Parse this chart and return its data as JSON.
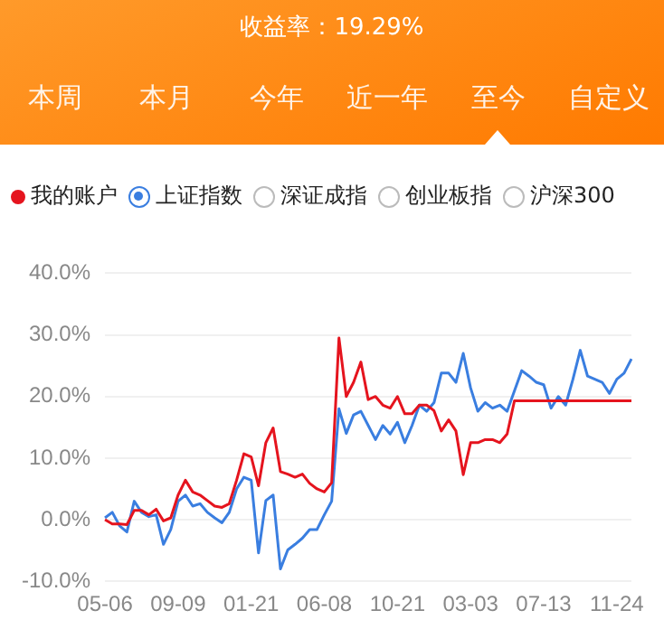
{
  "chart_data": {
    "type": "line",
    "title": "收益率：19.29%",
    "annotations": [
      "本周",
      "本月",
      "今年",
      "近一年",
      "至今",
      "自定义",
      "深证成指",
      "创业板指",
      "沪深300"
    ],
    "categories": [
      "05-06",
      null,
      null,
      null,
      null,
      null,
      null,
      null,
      null,
      null,
      "09-09",
      null,
      null,
      null,
      null,
      null,
      null,
      null,
      null,
      null,
      "01-21",
      null,
      null,
      null,
      null,
      null,
      null,
      null,
      null,
      null,
      "06-08",
      null,
      null,
      null,
      null,
      null,
      null,
      null,
      null,
      null,
      "10-21",
      null,
      null,
      null,
      null,
      null,
      null,
      null,
      null,
      null,
      "03-03",
      null,
      null,
      null,
      null,
      null,
      null,
      null,
      null,
      null,
      "07-13",
      null,
      null,
      null,
      null,
      null,
      null,
      null,
      null,
      null,
      "11-24",
      null,
      null
    ],
    "series": [
      {
        "name": "我的账户",
        "color": "#e5141e",
        "values": [
          0,
          -0.7,
          -0.7,
          -0.8,
          1.5,
          1.5,
          0.8,
          1.7,
          -0.2,
          0.3,
          4,
          6.4,
          4.5,
          4,
          3.1,
          2.2,
          2,
          2.6,
          6.4,
          10.7,
          10.2,
          5.5,
          12.5,
          14.9,
          7.8,
          7.4,
          6.9,
          7.4,
          5.9,
          5,
          4.5,
          6,
          29.5,
          20,
          22.3,
          25.6,
          19.5,
          20,
          18.6,
          18.1,
          20,
          17.2,
          17.2,
          18.6,
          18.6,
          17.7,
          14.4,
          16.2,
          14.4,
          7.3,
          12.5,
          12.5,
          13,
          13,
          12.5,
          13.9,
          19.3,
          19.3,
          19.3,
          19.3,
          19.3,
          19.3,
          19.3,
          19.3,
          19.3,
          19.3,
          19.3,
          19.3,
          19.3,
          19.3,
          19.3,
          19.3,
          19.3
        ]
      },
      {
        "name": "上证指数",
        "color": "#3a7ee0",
        "values": [
          0.3,
          1.2,
          -1,
          -2,
          3,
          1.2,
          0.5,
          0.8,
          -4,
          -1.6,
          3,
          4,
          2.2,
          2.6,
          1.2,
          0.3,
          -0.5,
          1.2,
          5,
          6.9,
          6.4,
          -5.4,
          3.1,
          4,
          -8,
          -4.9,
          -4,
          -3,
          -1.6,
          -1.6,
          0.8,
          3,
          18,
          14,
          17,
          17.6,
          15.3,
          13,
          15.3,
          13.9,
          15.8,
          12.5,
          15.3,
          18.6,
          17.6,
          19,
          23.8,
          23.8,
          22.3,
          27,
          21.4,
          17.6,
          19,
          18.1,
          18.6,
          17.6,
          20.9,
          24.2,
          23.3,
          22.3,
          21.9,
          18.1,
          20,
          18.6,
          22.8,
          27.5,
          23.3,
          22.8,
          22.3,
          20.5,
          22.8,
          23.8,
          26.1
        ]
      }
    ],
    "ylim": [
      -10,
      40
    ],
    "yticks": [
      {
        "value": -10,
        "label": "-10.0%"
      },
      {
        "value": 0,
        "label": "0.0%"
      },
      {
        "value": 10,
        "label": "10.0%"
      },
      {
        "value": 20,
        "label": "20.0%"
      },
      {
        "value": 30,
        "label": "30.0%"
      },
      {
        "value": 40,
        "label": "40.0%"
      }
    ],
    "grid": "y",
    "legend": "top left",
    "marker": "none",
    "line_style": "solid"
  }
}
